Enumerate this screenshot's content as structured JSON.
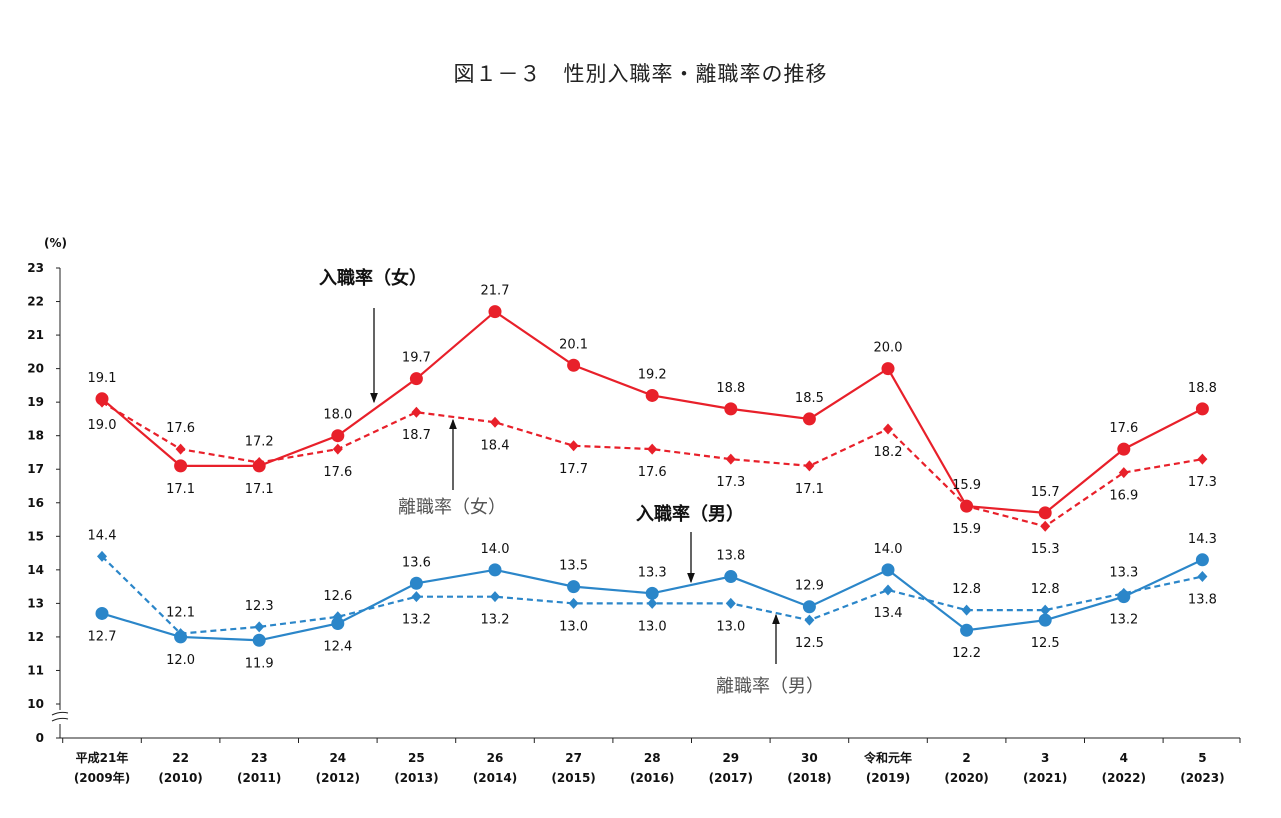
{
  "title": "図１－３　性別入職率・離職率の推移",
  "chart_data": {
    "type": "line",
    "unit_label": "(%)",
    "y_ticks": [
      10,
      11,
      12,
      13,
      14,
      15,
      16,
      17,
      18,
      19,
      20,
      21,
      22,
      23
    ],
    "y_zero_label": "0",
    "ylim": [
      10,
      23
    ],
    "y_axis_broken": true,
    "categories": [
      [
        "平成21年",
        "(2009年)"
      ],
      [
        "22",
        "(2010)"
      ],
      [
        "23",
        "(2011)"
      ],
      [
        "24",
        "(2012)"
      ],
      [
        "25",
        "(2013)"
      ],
      [
        "26",
        "(2014)"
      ],
      [
        "27",
        "(2015)"
      ],
      [
        "28",
        "(2016)"
      ],
      [
        "29",
        "(2017)"
      ],
      [
        "30",
        "(2018)"
      ],
      [
        "令和元年",
        "(2019)"
      ],
      [
        "2",
        "(2020)"
      ],
      [
        "3",
        "(2021)"
      ],
      [
        "4",
        "(2022)"
      ],
      [
        "5",
        "(2023)"
      ]
    ],
    "series": [
      {
        "name": "入職率（女）",
        "color": "#e8202a",
        "style": "solid",
        "marker": "circle",
        "values": [
          19.1,
          17.1,
          17.1,
          18.0,
          19.7,
          21.7,
          20.1,
          19.2,
          18.8,
          18.5,
          20.0,
          15.9,
          15.7,
          17.6,
          18.8
        ],
        "label_pos": [
          "above",
          "below",
          "below",
          "above",
          "above",
          "above",
          "above",
          "above",
          "above",
          "above",
          "above",
          "above",
          "above",
          "above",
          "above"
        ]
      },
      {
        "name": "離職率（女）",
        "color": "#e8202a",
        "style": "dashed",
        "marker": "diamond",
        "values": [
          19.0,
          17.6,
          17.2,
          17.6,
          18.7,
          18.4,
          17.7,
          17.6,
          17.3,
          17.1,
          18.2,
          15.9,
          15.3,
          16.9,
          17.3
        ],
        "label_pos": [
          "below",
          "above",
          "above",
          "below",
          "below",
          "below",
          "below",
          "below",
          "below",
          "below",
          "below",
          "below",
          "below",
          "below",
          "below"
        ]
      },
      {
        "name": "入職率（男）",
        "color": "#2b86c9",
        "style": "solid",
        "marker": "circle",
        "values": [
          12.7,
          12.0,
          11.9,
          12.4,
          13.6,
          14.0,
          13.5,
          13.3,
          13.8,
          12.9,
          14.0,
          12.2,
          12.5,
          13.2,
          14.3
        ],
        "label_pos": [
          "below",
          "below",
          "below",
          "below",
          "above",
          "above",
          "above",
          "above",
          "above",
          "above",
          "above",
          "below",
          "below",
          "below",
          "above"
        ]
      },
      {
        "name": "離職率（男）",
        "color": "#2b86c9",
        "style": "dashed",
        "marker": "diamond",
        "values": [
          14.4,
          12.1,
          12.3,
          12.6,
          13.2,
          13.2,
          13.0,
          13.0,
          13.0,
          12.5,
          13.4,
          12.8,
          12.8,
          13.3,
          13.8
        ],
        "label_pos": [
          "above",
          "above",
          "above",
          "above",
          "below",
          "below",
          "below",
          "below",
          "below",
          "below",
          "below",
          "above",
          "above",
          "above",
          "below"
        ]
      }
    ],
    "annotations": [
      {
        "text": "入職率（女）",
        "style": "bold"
      },
      {
        "text": "離職率（女）",
        "style": "light"
      },
      {
        "text": "入職率（男）",
        "style": "bold"
      },
      {
        "text": "離職率（男）",
        "style": "light"
      }
    ]
  }
}
